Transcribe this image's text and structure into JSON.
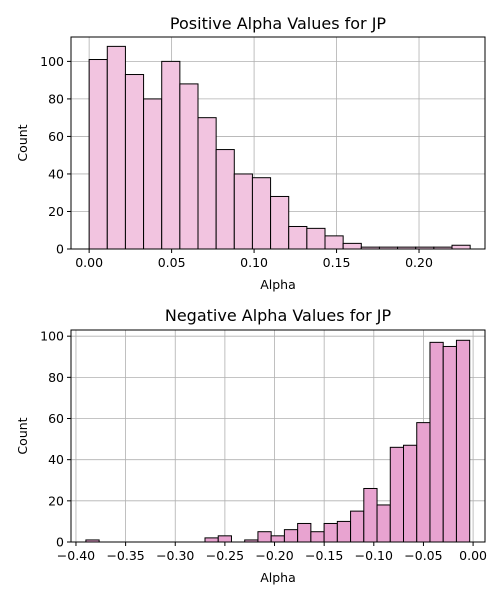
{
  "colors": {
    "positive_bar": "#f2c4e0",
    "negative_bar": "#e8a3d0",
    "edge": "#000000",
    "grid": "#b0b0b0"
  },
  "chart_data": [
    {
      "type": "bar",
      "title": "Positive Alpha Values for JP",
      "xlabel": "Alpha",
      "ylabel": "Count",
      "xlim": [
        -0.011,
        0.24
      ],
      "ylim": [
        0,
        113
      ],
      "grid": true,
      "xticks": [
        0.0,
        0.05,
        0.1,
        0.15,
        0.2
      ],
      "xtick_labels": [
        "0.00",
        "0.05",
        "0.10",
        "0.15",
        "0.20"
      ],
      "yticks": [
        0,
        20,
        40,
        60,
        80,
        100
      ],
      "ytick_labels": [
        "0",
        "20",
        "40",
        "60",
        "80",
        "100"
      ],
      "bin_start": 0.0,
      "bin_width": 0.011,
      "values": [
        101,
        108,
        93,
        80,
        100,
        88,
        70,
        53,
        40,
        38,
        28,
        12,
        11,
        7,
        3,
        1,
        1,
        1,
        1,
        1,
        2
      ]
    },
    {
      "type": "bar",
      "title": "Negative Alpha Values for JP",
      "xlabel": "Alpha",
      "ylabel": "Count",
      "xlim": [
        -0.405,
        0.012
      ],
      "ylim": [
        0,
        103
      ],
      "grid": true,
      "xticks": [
        -0.4,
        -0.35,
        -0.3,
        -0.25,
        -0.2,
        -0.15,
        -0.1,
        -0.05,
        0.0
      ],
      "xtick_labels": [
        "−0.40",
        "−0.35",
        "−0.30",
        "−0.25",
        "−0.20",
        "−0.15",
        "−0.10",
        "−0.05",
        "0.00"
      ],
      "yticks": [
        0,
        20,
        40,
        60,
        80,
        100
      ],
      "ytick_labels": [
        "0",
        "20",
        "40",
        "60",
        "80",
        "100"
      ],
      "bin_start": -0.39,
      "bin_width": 0.01333,
      "values": [
        1,
        0,
        0,
        0,
        0,
        0,
        0,
        0,
        0,
        2,
        3,
        0,
        1,
        5,
        3,
        6,
        9,
        5,
        9,
        10,
        15,
        26,
        18,
        46,
        47,
        58,
        97,
        95,
        98
      ]
    }
  ]
}
